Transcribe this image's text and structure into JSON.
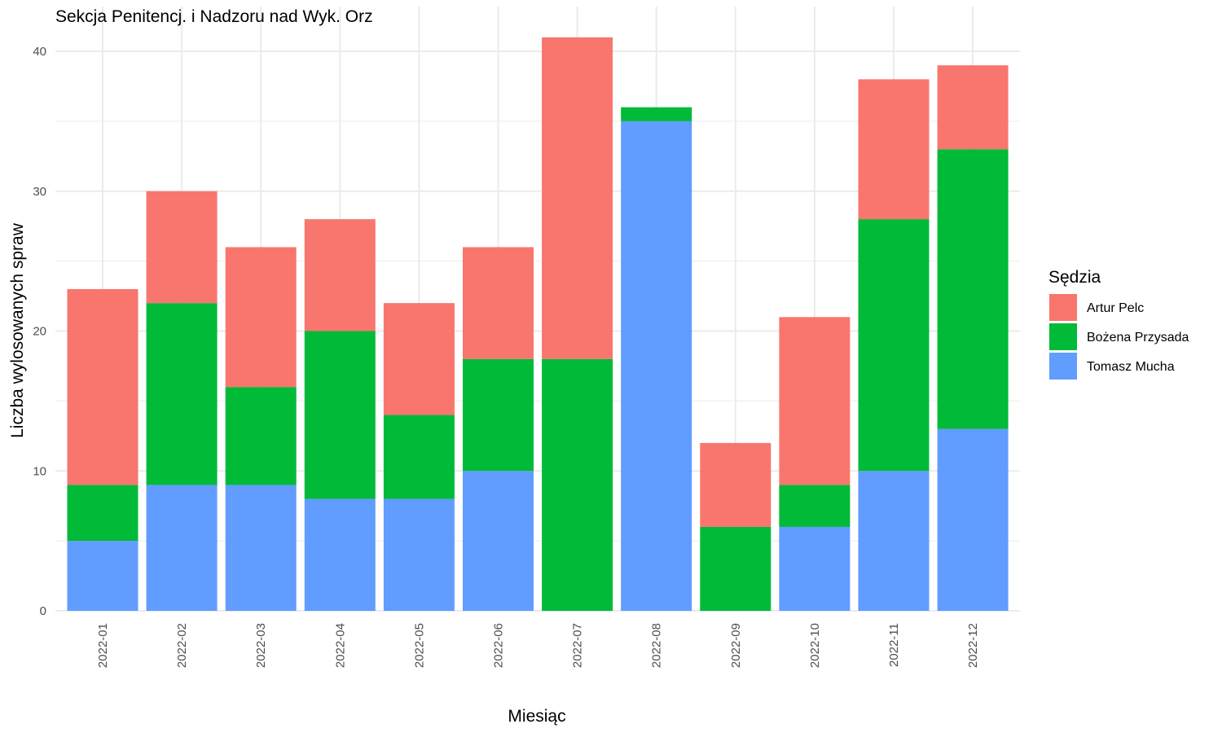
{
  "chart_data": {
    "type": "bar",
    "stacked": true,
    "title": "Sekcja Penitencj. i Nadzoru nad Wyk. Orz",
    "xlabel": "Miesiąc",
    "ylabel": "Liczba wylosowanych spraw",
    "categories": [
      "2022-01",
      "2022-02",
      "2022-03",
      "2022-04",
      "2022-05",
      "2022-06",
      "2022-07",
      "2022-08",
      "2022-09",
      "2022-10",
      "2022-11",
      "2022-12"
    ],
    "ylim": [
      0,
      42
    ],
    "yticks": [
      0,
      10,
      20,
      30,
      40
    ],
    "grid": true,
    "legend": {
      "title": "Sędzia",
      "placement": "right"
    },
    "series": [
      {
        "name": "Tomasz Mucha",
        "color": "#619CFF",
        "values": [
          5,
          9,
          9,
          8,
          8,
          10,
          0,
          35,
          0,
          6,
          10,
          13
        ]
      },
      {
        "name": "Bożena Przysada",
        "color": "#00BA38",
        "values": [
          4,
          13,
          7,
          12,
          6,
          8,
          18,
          1,
          6,
          3,
          18,
          20
        ]
      },
      {
        "name": "Artur Pelc",
        "color": "#F8766D",
        "values": [
          14,
          8,
          10,
          8,
          8,
          8,
          23,
          0,
          6,
          12,
          10,
          6
        ]
      }
    ],
    "legend_order": [
      "Artur Pelc",
      "Bożena Przysada",
      "Tomasz Mucha"
    ]
  }
}
